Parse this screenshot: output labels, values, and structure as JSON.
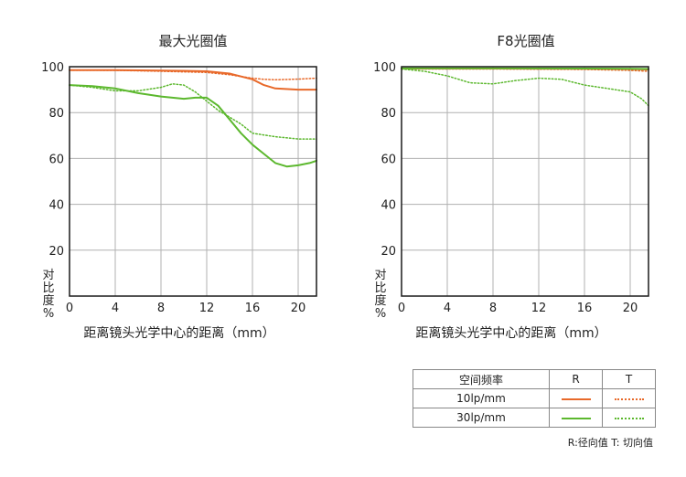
{
  "y_axis_label_chars": [
    "对",
    "比",
    "度",
    "%"
  ],
  "x_axis_title": "距离镜头光学中心的距离（mm）",
  "colors": {
    "frame": "#1a1a1a",
    "grid": "#b0b0b0",
    "orange": "#e8692a",
    "green": "#5cb82e"
  },
  "chart_data": [
    {
      "type": "line",
      "title": "最大光圈值",
      "xlabel": "距离镜头光学中心的距离（mm）",
      "ylabel": "对比度%",
      "xlim": [
        0,
        21.6
      ],
      "ylim": [
        0,
        100
      ],
      "xticks": [
        "0",
        "4",
        "8",
        "12",
        "16",
        "20"
      ],
      "yticks": [
        "20",
        "40",
        "60",
        "80",
        "100"
      ],
      "grid": true,
      "series": [
        {
          "name": "10lp/mm R",
          "color": "#e8692a",
          "style": "solid",
          "x": [
            0,
            4,
            8,
            10,
            12,
            14,
            16,
            17,
            18,
            20,
            21.6
          ],
          "y": [
            98.5,
            98.5,
            98.3,
            98.2,
            98,
            97,
            94.5,
            92,
            90.5,
            90,
            90
          ]
        },
        {
          "name": "10lp/mm T",
          "color": "#e8692a",
          "style": "dotted",
          "x": [
            0,
            4,
            8,
            12,
            14,
            16,
            17,
            18,
            20,
            21.6
          ],
          "y": [
            98.5,
            98.4,
            98,
            97.5,
            96.5,
            95,
            94.5,
            94.3,
            94.6,
            95
          ]
        },
        {
          "name": "30lp/mm R",
          "color": "#5cb82e",
          "style": "solid",
          "x": [
            0,
            2,
            4,
            6,
            8,
            10,
            11,
            12,
            13,
            14,
            15,
            16,
            17,
            18,
            19,
            20,
            21,
            21.6
          ],
          "y": [
            92,
            91.5,
            90.5,
            88.5,
            87,
            86,
            86.5,
            86.5,
            83,
            77,
            71,
            66,
            62,
            58,
            56.5,
            57,
            58,
            59
          ]
        },
        {
          "name": "30lp/mm T",
          "color": "#5cb82e",
          "style": "dotted",
          "x": [
            0,
            2,
            4,
            6,
            8,
            9,
            10,
            11,
            12,
            13,
            14,
            15,
            16,
            18,
            20,
            21.6
          ],
          "y": [
            92,
            91,
            89.5,
            89.5,
            91,
            92.5,
            92,
            89,
            85,
            81,
            78,
            75,
            71,
            69.5,
            68.5,
            68.5
          ]
        }
      ]
    },
    {
      "type": "line",
      "title": "F8光圈值",
      "xlabel": "距离镜头光学中心的距离（mm）",
      "ylabel": "对比度%",
      "xlim": [
        0,
        21.6
      ],
      "ylim": [
        0,
        100
      ],
      "xticks": [
        "0",
        "4",
        "8",
        "12",
        "16",
        "20"
      ],
      "yticks": [
        "20",
        "40",
        "60",
        "80",
        "100"
      ],
      "grid": true,
      "series": [
        {
          "name": "10lp/mm R",
          "color": "#e8692a",
          "style": "solid",
          "x": [
            0,
            8,
            16,
            20,
            21.6
          ],
          "y": [
            99.2,
            99.2,
            99.1,
            99,
            98.8
          ]
        },
        {
          "name": "10lp/mm T",
          "color": "#e8692a",
          "style": "dotted",
          "x": [
            0,
            8,
            16,
            20,
            21.6
          ],
          "y": [
            99,
            99,
            98.8,
            98.4,
            98
          ]
        },
        {
          "name": "30lp/mm R",
          "color": "#5cb82e",
          "style": "solid",
          "x": [
            0,
            8,
            16,
            20,
            21.6
          ],
          "y": [
            99.3,
            99.3,
            99.2,
            99.1,
            99
          ]
        },
        {
          "name": "30lp/mm T",
          "color": "#5cb82e",
          "style": "dotted",
          "x": [
            0,
            2,
            4,
            6,
            8,
            10,
            12,
            14,
            16,
            18,
            20,
            21,
            21.6
          ],
          "y": [
            99,
            98,
            96,
            93,
            92.5,
            94,
            95,
            94.5,
            92,
            90.5,
            89,
            86,
            83
          ]
        }
      ]
    }
  ],
  "legend_table": {
    "header": [
      "空间频率",
      "R",
      "T"
    ],
    "rows": [
      {
        "label": "10lp/mm",
        "color": "#e8692a"
      },
      {
        "label": "30lp/mm",
        "color": "#5cb82e"
      }
    ]
  },
  "note": "R:径向值  T:  切向值"
}
